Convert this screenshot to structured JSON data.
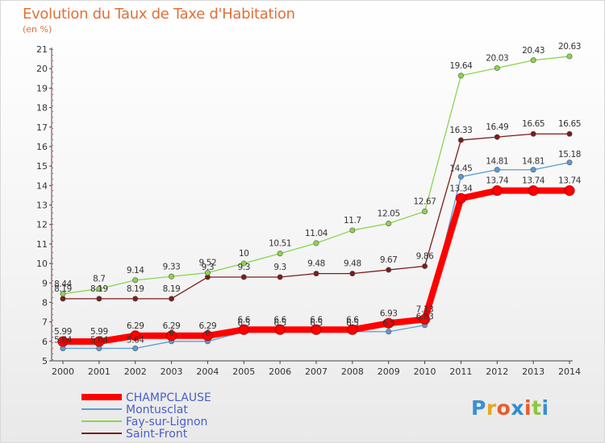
{
  "title": "Evolution du Taux de Taxe d'Habitation",
  "unit": "(en %)",
  "logo_text": [
    "P",
    "r",
    "o",
    "x",
    "i",
    "t",
    "i"
  ],
  "chart_data": {
    "type": "line",
    "title": "Evolution du Taux de Taxe d'Habitation",
    "ylabel": "(en %)",
    "x": [
      2000,
      2001,
      2002,
      2003,
      2004,
      2005,
      2006,
      2007,
      2008,
      2009,
      2010,
      2011,
      2012,
      2013,
      2014
    ],
    "ylim": [
      5,
      21
    ],
    "yticks": [
      5,
      6,
      7,
      8,
      9,
      10,
      11,
      12,
      13,
      14,
      15,
      16,
      17,
      18,
      19,
      20,
      21
    ],
    "grid": false,
    "legend_position": "bottom-left",
    "series": [
      {
        "name": "CHAMPCLAUSE",
        "color": "#ff0000",
        "values": [
          5.99,
          5.99,
          6.29,
          6.29,
          6.29,
          6.6,
          6.6,
          6.6,
          6.6,
          6.93,
          7.13,
          13.34,
          13.74,
          13.74,
          13.74
        ],
        "labels": [
          "5.99",
          "5.99",
          "6.29",
          "6.29",
          "6.29",
          "6.6",
          "6.6",
          "6.6",
          "6.6",
          "6.93",
          "7.13",
          "13.34",
          "13.74",
          "13.74",
          "13.74"
        ]
      },
      {
        "name": "Montusclat",
        "color": "#5b9bd5",
        "values": [
          5.64,
          5.64,
          5.64,
          6.0,
          6.0,
          6.5,
          6.5,
          6.5,
          6.5,
          6.5,
          6.83,
          14.45,
          14.81,
          14.81,
          15.18
        ],
        "labels": [
          "5.64",
          "5.64",
          "5.64",
          "6",
          "6",
          "6.5",
          "6.5",
          "6.5",
          "6.5",
          "6.5",
          "6.83",
          "14.45",
          "14.81",
          "14.81",
          "15.18"
        ]
      },
      {
        "name": "Fay-sur-Lignon",
        "color": "#8cd450",
        "values": [
          8.44,
          8.7,
          9.14,
          9.33,
          9.52,
          10,
          10.51,
          11.04,
          11.7,
          12.05,
          12.67,
          19.64,
          20.03,
          20.43,
          20.63
        ],
        "labels": [
          "8.44",
          "8.7",
          "9.14",
          "9.33",
          "9.52",
          "10",
          "10.51",
          "11.04",
          "11.7",
          "12.05",
          "12.67",
          "19.64",
          "20.03",
          "20.43",
          "20.63"
        ]
      },
      {
        "name": "Saint-Front",
        "color": "#7b1c1c",
        "values": [
          8.19,
          8.19,
          8.19,
          8.19,
          9.3,
          9.3,
          9.3,
          9.48,
          9.48,
          9.67,
          9.86,
          16.33,
          16.49,
          16.65,
          16.65
        ],
        "labels": [
          "8.19",
          "8.19",
          "8.19",
          "8.19",
          "9.3",
          "9.3",
          "9.3",
          "9.48",
          "9.48",
          "9.67",
          "9.86",
          "16.33",
          "16.49",
          "16.65",
          "16.65"
        ]
      }
    ]
  }
}
